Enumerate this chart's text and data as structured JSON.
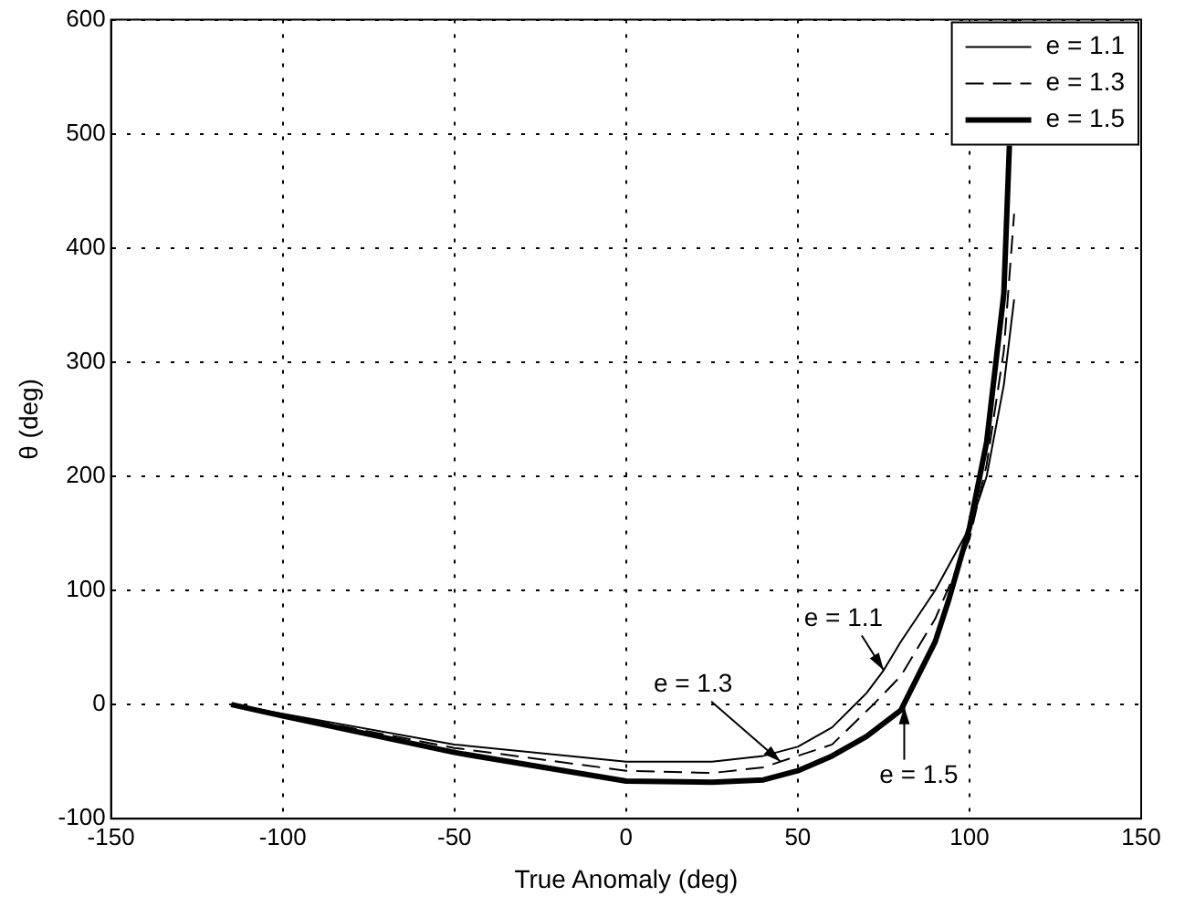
{
  "chart_data": {
    "type": "line",
    "xlabel": "True Anomaly (deg)",
    "ylabel": "θ (deg)",
    "xlim": [
      -150,
      150
    ],
    "xticks": [
      -150,
      -100,
      -50,
      0,
      50,
      100,
      150
    ],
    "ylim": [
      -100,
      600
    ],
    "yticks": [
      -100,
      0,
      100,
      200,
      300,
      400,
      500,
      600
    ],
    "grid": true,
    "legend": "top right",
    "marker": "none",
    "series": [
      {
        "name": "e = 1.1",
        "color": "#000000",
        "line_style": "solid",
        "x": [
          -115,
          -100,
          -50,
          0,
          25,
          40,
          50,
          60,
          70,
          75,
          80,
          90,
          100,
          105,
          110,
          113
        ],
        "values": [
          0,
          -8,
          -35,
          -50,
          -50,
          -45,
          -37,
          -20,
          10,
          30,
          55,
          100,
          155,
          200,
          280,
          355
        ]
      },
      {
        "name": "e = 1.3",
        "color": "#000000",
        "line_style": "dashed",
        "x": [
          -115,
          -100,
          -50,
          0,
          25,
          40,
          50,
          60,
          72,
          80,
          86,
          90,
          100,
          105,
          110,
          113
        ],
        "values": [
          0,
          -9,
          -38,
          -58,
          -60,
          -55,
          -45,
          -35,
          0,
          25,
          55,
          75,
          145,
          210,
          310,
          430
        ]
      },
      {
        "name": "e = 1.5",
        "color": "#000000",
        "line_style": "solid",
        "x": [
          -115,
          -100,
          -50,
          0,
          25,
          40,
          50,
          60,
          70,
          80,
          90,
          94,
          100,
          105,
          110,
          113
        ],
        "values": [
          0,
          -10,
          -42,
          -67,
          -68,
          -66,
          -58,
          -45,
          -28,
          -5,
          55,
          92,
          155,
          230,
          360,
          600
        ]
      }
    ],
    "annotations": [
      {
        "text": "e = 1.1",
        "x": 75,
        "y": 30
      },
      {
        "text": "e = 1.3",
        "x": 45,
        "y": -50
      },
      {
        "text": "e = 1.5",
        "x": 81,
        "y": -2
      }
    ]
  }
}
